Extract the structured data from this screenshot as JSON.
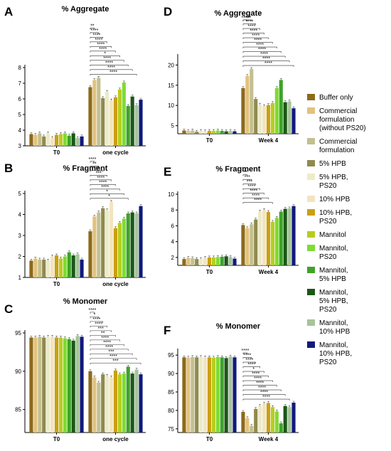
{
  "legend": [
    {
      "label": [
        "Buffer only"
      ],
      "color": "#8c6a1a"
    },
    {
      "label": [
        "Commercial",
        "formulation",
        "(without PS20)"
      ],
      "color": "#e2c27c"
    },
    {
      "label": [
        "Commercial",
        "formulation"
      ],
      "color": "#c3c08f"
    },
    {
      "label": [
        "5% HPB"
      ],
      "color": "#8f8a4f"
    },
    {
      "label": [
        "5% HPB,",
        "PS20"
      ],
      "color": "#ecebc9"
    },
    {
      "label": [
        "10% HPB"
      ],
      "color": "#f3e4c1"
    },
    {
      "label": [
        "10% HPB,",
        "PS20"
      ],
      "color": "#c8a012"
    },
    {
      "label": [
        "Mannitol"
      ],
      "color": "#b8cc1f"
    },
    {
      "label": [
        "Mannitol,",
        "PS20"
      ],
      "color": "#80db34"
    },
    {
      "label": [
        "Mannitol,",
        "5% HPB"
      ],
      "color": "#3ea32a"
    },
    {
      "label": [
        "Mannitol,",
        "5% HPB,",
        "PS20"
      ],
      "color": "#1b5716"
    },
    {
      "label": [
        "Mannitol,",
        "10% HPB"
      ],
      "color": "#a6c49a"
    },
    {
      "label": [
        "Mannitol,",
        "10% HPB,",
        "PS20"
      ],
      "color": "#101a7a"
    }
  ],
  "chart_data": [
    {
      "panel": "A",
      "type": "bar",
      "title": "% Aggregate",
      "groups": [
        "T0",
        "one cycle"
      ],
      "ylim": [
        3,
        8
      ],
      "yticks": [
        3,
        4,
        5,
        6,
        7,
        8
      ],
      "values": [
        [
          3.75,
          3.7,
          3.8,
          3.6,
          3.8,
          3.5,
          3.7,
          3.75,
          3.8,
          3.65,
          3.8,
          3.5,
          3.6
        ],
        [
          6.75,
          7.2,
          7.35,
          6.05,
          6.45,
          5.9,
          6.1,
          6.6,
          7.05,
          5.55,
          6.15,
          5.6,
          5.95
        ]
      ],
      "significance": [
        "**",
        "****",
        "****",
        "****",
        "****",
        "****",
        "*",
        "****",
        "****",
        "****",
        "****"
      ]
    },
    {
      "panel": "B",
      "type": "bar",
      "title": "% Fragment",
      "groups": [
        "T0",
        "one cycle"
      ],
      "ylim": [
        1,
        5
      ],
      "yticks": [
        1,
        2,
        3,
        4,
        5
      ],
      "values": [
        [
          1.8,
          1.9,
          1.85,
          1.85,
          1.8,
          2.0,
          2.05,
          1.9,
          2.0,
          2.2,
          2.05,
          2.1,
          1.85
        ],
        [
          3.2,
          3.9,
          4.1,
          4.3,
          4.2,
          4.6,
          3.35,
          3.6,
          3.8,
          4.05,
          4.1,
          4.05,
          4.4
        ]
      ],
      "significance": [
        "****",
        "**",
        "***",
        "***",
        "****",
        "****",
        "****",
        "*",
        "*"
      ]
    },
    {
      "panel": "C",
      "type": "bar",
      "title": "% Monomer",
      "groups": [
        "T0",
        "one cycle"
      ],
      "ylim": [
        82,
        95
      ],
      "yticks": [
        85,
        90,
        95
      ],
      "values": [
        [
          94.4,
          94.4,
          94.5,
          94.4,
          94.5,
          94.5,
          94.4,
          94.4,
          94.3,
          94.2,
          94.0,
          94.6,
          94.5
        ],
        [
          90.0,
          89.2,
          88.5,
          89.6,
          89.4,
          89.2,
          90.1,
          89.6,
          89.7,
          90.6,
          89.7,
          90.2,
          89.6
        ]
      ],
      "significance": [
        "****",
        "*",
        "****",
        "****",
        "***",
        "**",
        "****",
        "****",
        "****",
        "***",
        "****",
        "***"
      ]
    },
    {
      "panel": "D",
      "type": "bar",
      "title": "% Aggregate",
      "groups": [
        "T0",
        "Week 4"
      ],
      "ylim": [
        3,
        22
      ],
      "yticks": [
        5,
        10,
        15,
        20
      ],
      "values": [
        [
          3.8,
          3.7,
          3.8,
          3.5,
          3.7,
          3.6,
          3.7,
          3.7,
          3.8,
          3.7,
          3.6,
          3.7,
          3.6
        ],
        [
          14.3,
          17.3,
          19.0,
          11.6,
          10.2,
          9.8,
          10.1,
          10.6,
          14.3,
          16.3,
          10.8,
          11.0,
          9.3
        ]
      ],
      "significance": [
        "****",
        "****",
        "****",
        "****",
        "****",
        "****",
        "****",
        "****",
        "****",
        "****",
        "****",
        "****"
      ]
    },
    {
      "panel": "E",
      "type": "bar",
      "title": "% Fragment",
      "groups": [
        "T0",
        "Week 4"
      ],
      "ylim": [
        1,
        10
      ],
      "yticks": [
        2,
        4,
        6,
        8,
        10
      ],
      "values": [
        [
          1.8,
          1.95,
          1.9,
          1.8,
          1.8,
          1.95,
          2.0,
          2.0,
          2.05,
          2.1,
          2.15,
          2.05,
          1.85
        ],
        [
          6.1,
          5.7,
          6.2,
          6.8,
          7.8,
          8.0,
          7.75,
          6.5,
          7.0,
          7.8,
          8.15,
          8.2,
          8.5
        ]
      ],
      "significance": [
        "**",
        "***",
        "***",
        "****",
        "****",
        "****",
        "****"
      ]
    },
    {
      "panel": "F",
      "type": "bar",
      "title": "% Monomer",
      "groups": [
        "T0",
        "Week 4"
      ],
      "ylim": [
        74,
        96
      ],
      "yticks": [
        75,
        80,
        85,
        90,
        95
      ],
      "values": [
        [
          94.4,
          94.3,
          94.5,
          94.4,
          94.5,
          94.4,
          94.4,
          94.3,
          94.5,
          94.4,
          94.2,
          94.6,
          94.4
        ],
        [
          79.6,
          77.9,
          75.8,
          80.4,
          81.2,
          81.8,
          82.0,
          80.9,
          79.7,
          76.5,
          81.2,
          80.9,
          82.1
        ]
      ],
      "significance": [
        "****",
        "****",
        "****",
        "****",
        "*",
        "****",
        "****",
        "****",
        "****",
        "****",
        "****"
      ]
    }
  ]
}
